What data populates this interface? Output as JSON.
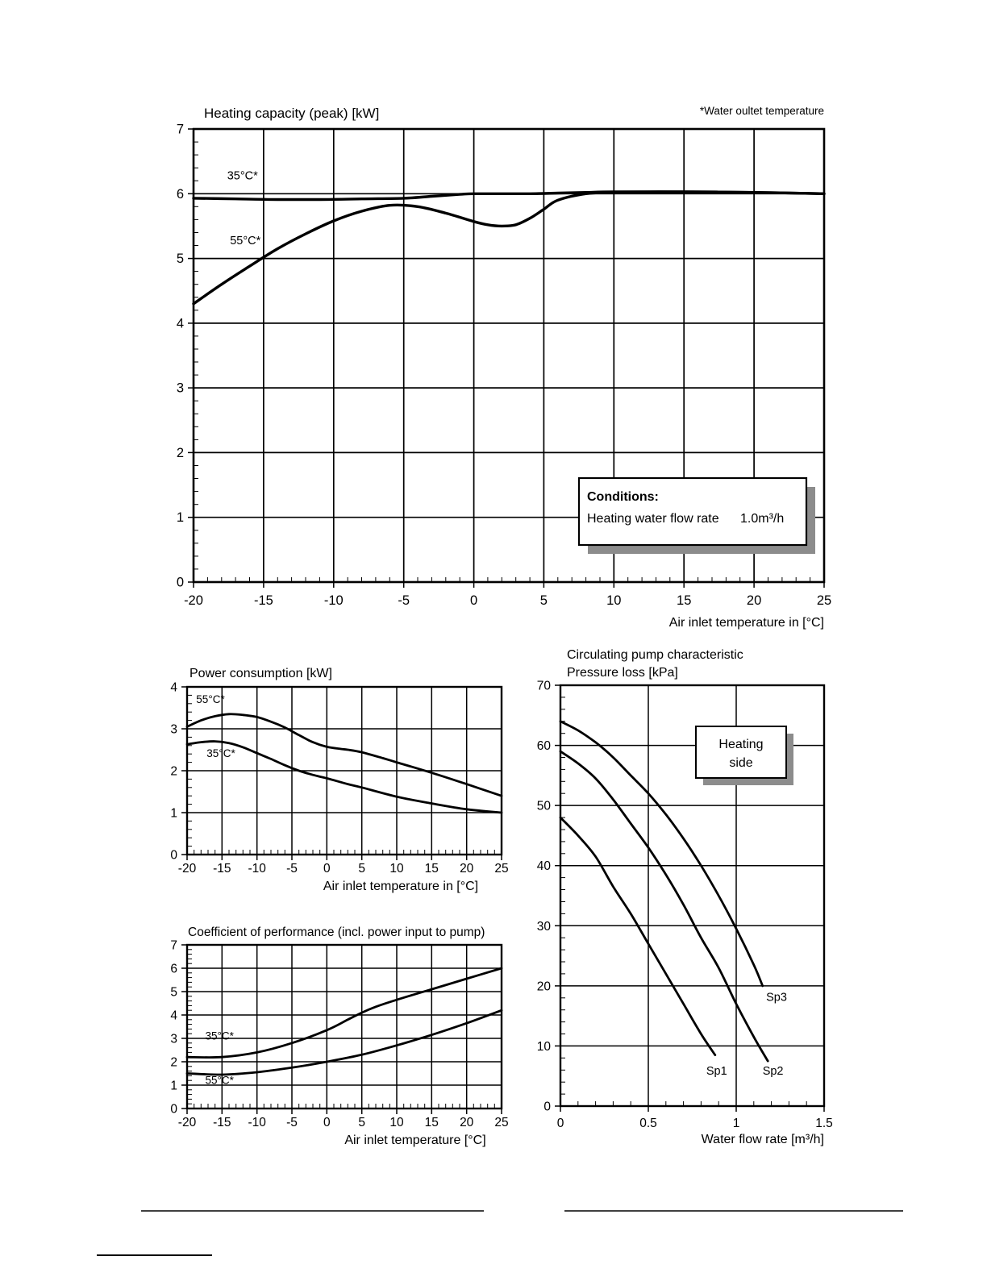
{
  "note": "*Water oultet temperature",
  "conditions": {
    "title": "Conditions:",
    "label": "Heating water flow rate",
    "value": "1.0m³/h"
  },
  "pump_box": {
    "line1": "Heating",
    "line2": "side"
  },
  "chart_data": [
    {
      "type": "line",
      "title": "Heating capacity (peak) [kW]",
      "xlabel": "Air inlet temperature in [°C]",
      "xlim": [
        -20,
        25
      ],
      "ylim": [
        0,
        7
      ],
      "xticks": [
        -20,
        -15,
        -10,
        -5,
        0,
        5,
        10,
        15,
        20,
        25
      ],
      "yticks": [
        0,
        1,
        2,
        3,
        4,
        5,
        6,
        7
      ],
      "grid": true,
      "legend_position": "inline",
      "series": [
        {
          "name": "35°C*",
          "label_x": -17.6,
          "label_y": 6.22,
          "x": [
            -20,
            -17,
            -14,
            -11,
            -8,
            -5,
            -3,
            -1,
            0,
            2,
            4,
            6,
            8,
            10,
            15,
            20,
            25
          ],
          "y": [
            5.93,
            5.92,
            5.91,
            5.91,
            5.92,
            5.93,
            5.96,
            5.99,
            6.0,
            6.0,
            6.0,
            6.01,
            6.02,
            6.03,
            6.03,
            6.02,
            6.0
          ]
        },
        {
          "name": "55°C*",
          "label_x": -17.4,
          "label_y": 5.22,
          "x": [
            -20,
            -18,
            -16,
            -14,
            -12,
            -10,
            -8,
            -6,
            -4,
            -2,
            0,
            1,
            2,
            3,
            4,
            5,
            6,
            8,
            10,
            15,
            20,
            25
          ],
          "y": [
            4.3,
            4.6,
            4.88,
            5.15,
            5.38,
            5.58,
            5.73,
            5.82,
            5.8,
            5.7,
            5.57,
            5.52,
            5.5,
            5.52,
            5.62,
            5.76,
            5.9,
            6.0,
            6.02,
            6.03,
            6.02,
            6.0
          ]
        }
      ]
    },
    {
      "type": "line",
      "title": "Power consumption [kW]",
      "xlabel": "Air inlet temperature in [°C]",
      "xlim": [
        -20,
        25
      ],
      "ylim": [
        0,
        4
      ],
      "xticks": [
        -20,
        -15,
        -10,
        -5,
        0,
        5,
        10,
        15,
        20,
        25
      ],
      "yticks": [
        0,
        1,
        2,
        3,
        4
      ],
      "grid": true,
      "series": [
        {
          "name": "55°C*",
          "label_x": -18.7,
          "label_y": 3.62,
          "x": [
            -20,
            -18,
            -16,
            -14,
            -12,
            -10,
            -8,
            -6,
            -4,
            -2,
            0,
            2,
            3,
            5,
            8,
            10,
            15,
            20,
            25
          ],
          "y": [
            3.05,
            3.2,
            3.3,
            3.35,
            3.33,
            3.28,
            3.17,
            3.03,
            2.85,
            2.68,
            2.57,
            2.52,
            2.5,
            2.44,
            2.3,
            2.2,
            1.95,
            1.68,
            1.4
          ]
        },
        {
          "name": "35°C*",
          "label_x": -17.2,
          "label_y": 2.33,
          "x": [
            -20,
            -18,
            -16,
            -14,
            -12,
            -10,
            -8,
            -6,
            -4,
            -2,
            0,
            3,
            5,
            10,
            15,
            20,
            25
          ],
          "y": [
            2.63,
            2.68,
            2.7,
            2.66,
            2.56,
            2.42,
            2.28,
            2.13,
            2.0,
            1.9,
            1.82,
            1.68,
            1.6,
            1.38,
            1.22,
            1.08,
            1.0
          ]
        }
      ]
    },
    {
      "type": "line",
      "title": "Coefficient of performance (incl. power input to pump)",
      "xlabel": "Air inlet temperature [°C]",
      "xlim": [
        -20,
        25
      ],
      "ylim": [
        0,
        7
      ],
      "xticks": [
        -20,
        -15,
        -10,
        -5,
        0,
        5,
        10,
        15,
        20,
        25
      ],
      "yticks": [
        0,
        1,
        2,
        3,
        4,
        5,
        6,
        7
      ],
      "grid": true,
      "series": [
        {
          "name": "35°C*",
          "label_x": -17.4,
          "label_y": 2.95,
          "x": [
            -20,
            -15,
            -10,
            -5,
            0,
            3,
            5,
            7,
            10,
            15,
            20,
            25
          ],
          "y": [
            2.2,
            2.2,
            2.4,
            2.8,
            3.35,
            3.8,
            4.1,
            4.35,
            4.65,
            5.1,
            5.55,
            6.0
          ]
        },
        {
          "name": "55°C*",
          "label_x": -17.4,
          "label_y": 1.05,
          "x": [
            -20,
            -15,
            -10,
            -5,
            0,
            5,
            10,
            15,
            20,
            25
          ],
          "y": [
            1.5,
            1.45,
            1.55,
            1.75,
            2.0,
            2.3,
            2.7,
            3.15,
            3.65,
            4.2
          ]
        }
      ]
    },
    {
      "type": "line",
      "title": "Circulating pump characteristic",
      "subtitle": "Pressure loss [kPa]",
      "xlabel": "Water flow rate [m³/h]",
      "xlim": [
        0,
        1.5
      ],
      "ylim": [
        0,
        70
      ],
      "xticks": [
        0,
        0.5,
        1,
        1.5
      ],
      "yticks": [
        0,
        10,
        20,
        30,
        40,
        50,
        60,
        70
      ],
      "grid": true,
      "series": [
        {
          "name": "Sp1",
          "label_x": 0.83,
          "label_y": 5.2,
          "x": [
            0,
            0.1,
            0.2,
            0.3,
            0.4,
            0.5,
            0.6,
            0.7,
            0.8,
            0.88
          ],
          "y": [
            48,
            45,
            41.5,
            36.5,
            32,
            27,
            22,
            17,
            12,
            8.5
          ]
        },
        {
          "name": "Sp2",
          "label_x": 1.15,
          "label_y": 5.2,
          "x": [
            0,
            0.1,
            0.2,
            0.3,
            0.4,
            0.5,
            0.6,
            0.7,
            0.8,
            0.9,
            1.0,
            1.1,
            1.18
          ],
          "y": [
            59,
            57,
            54.5,
            51,
            47,
            43,
            38.5,
            33.5,
            28,
            23,
            17,
            11.5,
            7.5
          ]
        },
        {
          "name": "Sp3",
          "label_x": 1.17,
          "label_y": 17.5,
          "x": [
            0,
            0.1,
            0.2,
            0.3,
            0.4,
            0.5,
            0.6,
            0.7,
            0.8,
            0.9,
            1.0,
            1.1,
            1.15
          ],
          "y": [
            64,
            62.5,
            60.5,
            58,
            55,
            52,
            48.5,
            44.5,
            40,
            35,
            29.5,
            23.5,
            20
          ]
        }
      ]
    }
  ]
}
